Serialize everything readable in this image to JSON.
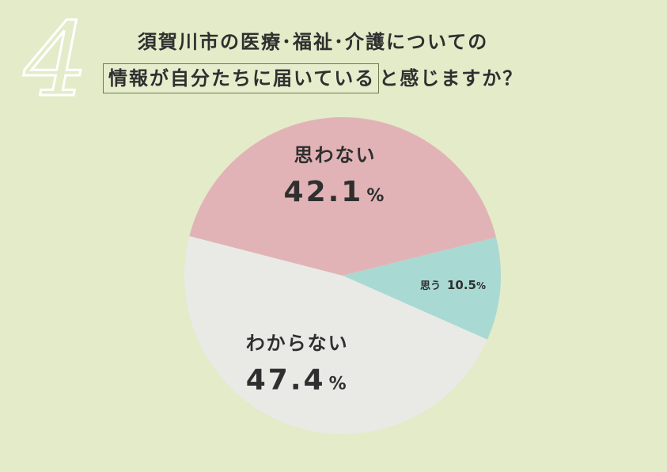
{
  "header": {
    "number_glyph": "4",
    "title_line1": "須賀川市の医療･福祉･介護についての",
    "title_boxed": "情報が自分たちに届いている",
    "title_after": "と感じますか？"
  },
  "chart_data": {
    "type": "pie",
    "start_angle_deg": 14,
    "direction": "clockwise",
    "slices": [
      {
        "label": "思う",
        "value": 10.5,
        "value_text": "10.5",
        "unit": "%",
        "color": "#a9d9d3"
      },
      {
        "label": "わからない",
        "value": 47.4,
        "value_text": "47.4",
        "unit": "%",
        "color": "#e9eae6"
      },
      {
        "label": "思わない",
        "value": 42.1,
        "value_text": "42.1",
        "unit": "%",
        "color": "#e2b3b6"
      }
    ]
  },
  "colors": {
    "background": "#e3ebc8",
    "text": "#2f2f2f",
    "number_mark": "#ffffff"
  }
}
